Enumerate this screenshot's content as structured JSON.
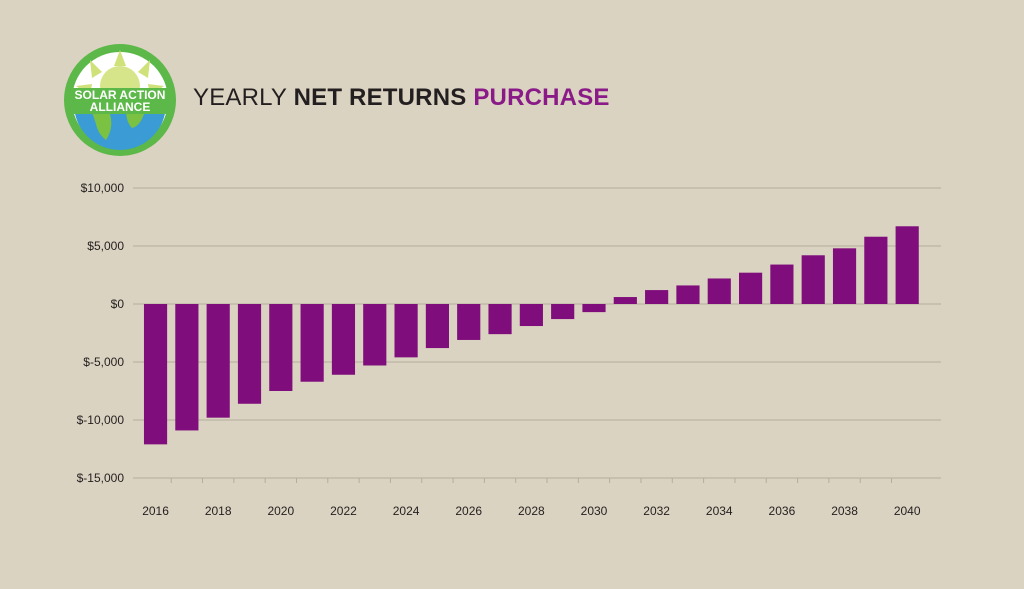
{
  "logo": {
    "line1": "SOLAR ACTION",
    "line2": "ALLIANCE",
    "colors": {
      "ring": "#5cb848",
      "sun": "#cfe27a",
      "globe": "#3a9bd5",
      "land": "#7cc242"
    }
  },
  "title": {
    "part1": "YEARLY",
    "part2": "NET RETURNS",
    "part3": "PURCHASE"
  },
  "colors": {
    "bar": "#7f0e7c",
    "accent": "#8a1a87",
    "grid": "#b5ad9c",
    "text": "#231f20"
  },
  "chart_data": {
    "type": "bar",
    "title": "YEARLY NET RETURNS PURCHASE",
    "xlabel": "",
    "ylabel": "",
    "categories": [
      2016,
      2017,
      2018,
      2019,
      2020,
      2021,
      2022,
      2023,
      2024,
      2025,
      2026,
      2027,
      2028,
      2029,
      2030,
      2031,
      2032,
      2033,
      2034,
      2035,
      2036,
      2037,
      2038,
      2039,
      2040
    ],
    "values": [
      -12100,
      -10900,
      -9800,
      -8600,
      -7500,
      -6700,
      -6100,
      -5300,
      -4600,
      -3800,
      -3100,
      -2600,
      -1900,
      -1300,
      -700,
      600,
      1200,
      1600,
      2200,
      2700,
      3400,
      4200,
      4800,
      5800,
      6700
    ],
    "ylim": [
      -15000,
      10000
    ],
    "yticks": [
      10000,
      5000,
      0,
      -5000,
      -10000,
      -15000
    ],
    "ytick_labels": [
      "$10,000",
      "$5,000",
      "$0",
      "$-5,000",
      "$-10,000",
      "$-15,000"
    ],
    "xtick_labels": [
      "2016",
      "2018",
      "2020",
      "2022",
      "2024",
      "2026",
      "2028",
      "2030",
      "2032",
      "2034",
      "2036",
      "2038",
      "2040"
    ],
    "grid": true,
    "legend": "none"
  }
}
